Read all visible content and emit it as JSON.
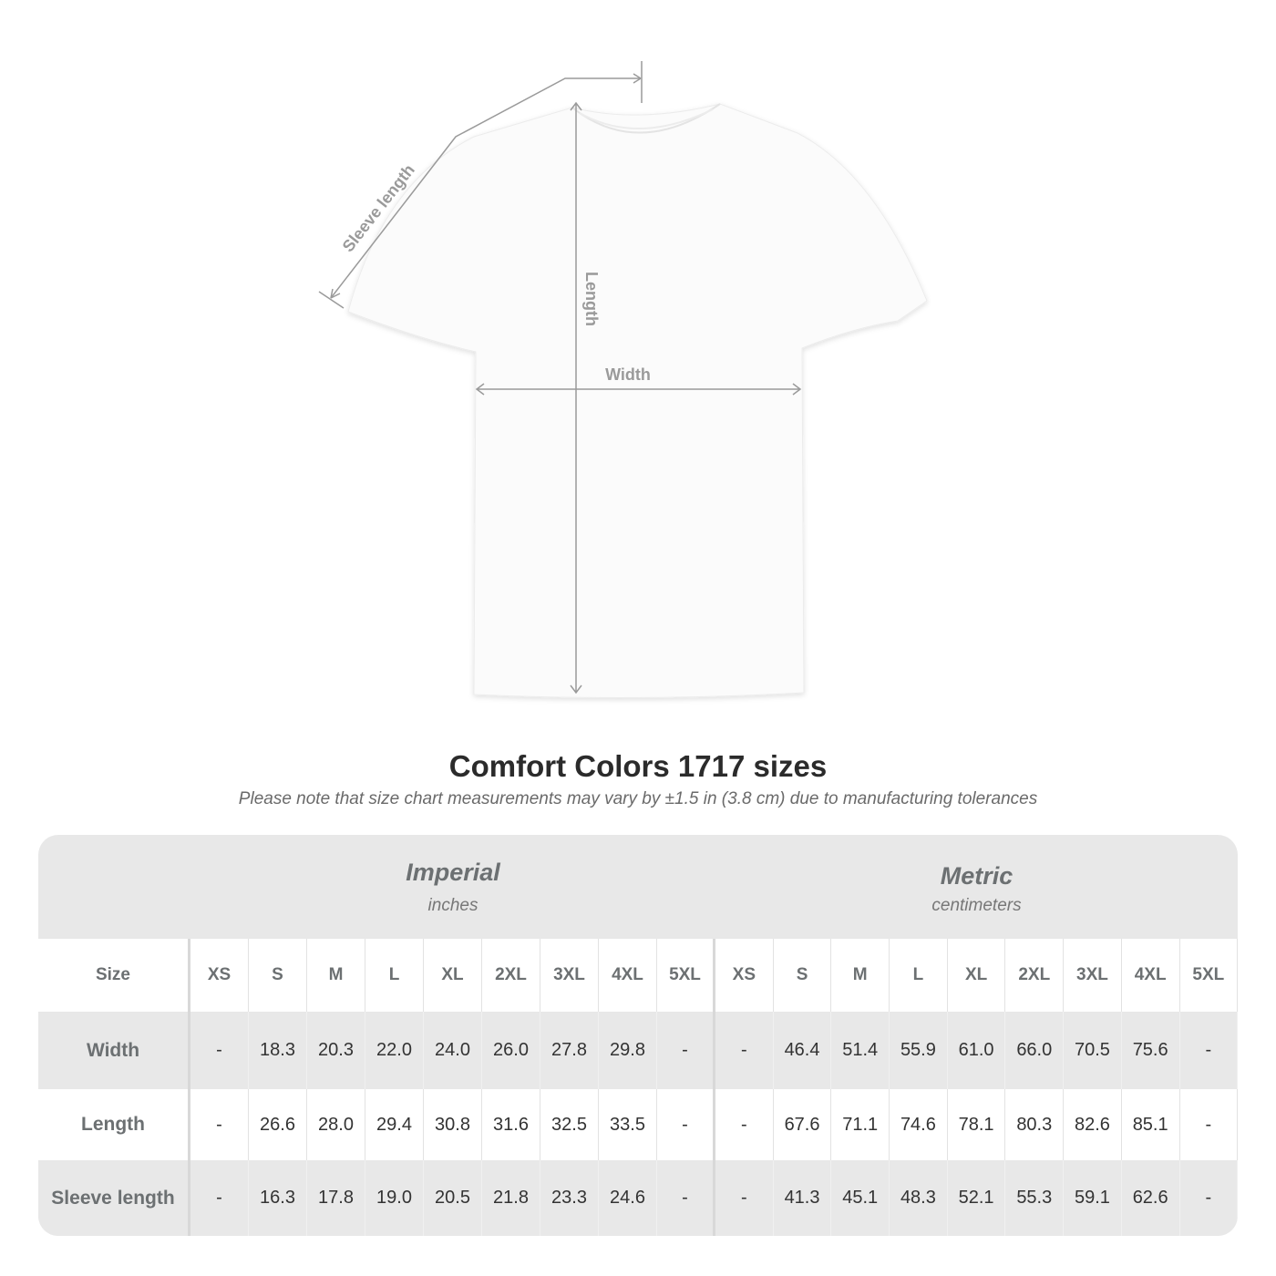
{
  "diagram": {
    "labels": {
      "sleeve": "Sleeve length",
      "length": "Length",
      "width": "Width"
    },
    "line_color": "#999999"
  },
  "title": "Comfort Colors 1717 sizes",
  "note": "Please note that size chart measurements may vary by ±1.5 in (3.8 cm) due to manufacturing tolerances",
  "table": {
    "imperial": {
      "heading": "Imperial",
      "unit": "inches"
    },
    "metric": {
      "heading": "Metric",
      "unit": "centimeters"
    },
    "size_label": "Size",
    "sizes": [
      "XS",
      "S",
      "M",
      "L",
      "XL",
      "2XL",
      "3XL",
      "4XL",
      "5XL"
    ],
    "rows": [
      {
        "label": "Width",
        "imperial": [
          "-",
          "18.3",
          "20.3",
          "22.0",
          "24.0",
          "26.0",
          "27.8",
          "29.8",
          "-"
        ],
        "metric": [
          "-",
          "46.4",
          "51.4",
          "55.9",
          "61.0",
          "66.0",
          "70.5",
          "75.6",
          "-"
        ]
      },
      {
        "label": "Length",
        "imperial": [
          "-",
          "26.6",
          "28.0",
          "29.4",
          "30.8",
          "31.6",
          "32.5",
          "33.5",
          "-"
        ],
        "metric": [
          "-",
          "67.6",
          "71.1",
          "74.6",
          "78.1",
          "80.3",
          "82.6",
          "85.1",
          "-"
        ]
      },
      {
        "label": "Sleeve length",
        "imperial": [
          "-",
          "16.3",
          "17.8",
          "19.0",
          "20.5",
          "21.8",
          "23.3",
          "24.6",
          "-"
        ],
        "metric": [
          "-",
          "41.3",
          "45.1",
          "48.3",
          "52.1",
          "55.3",
          "59.1",
          "62.6",
          "-"
        ]
      }
    ]
  }
}
